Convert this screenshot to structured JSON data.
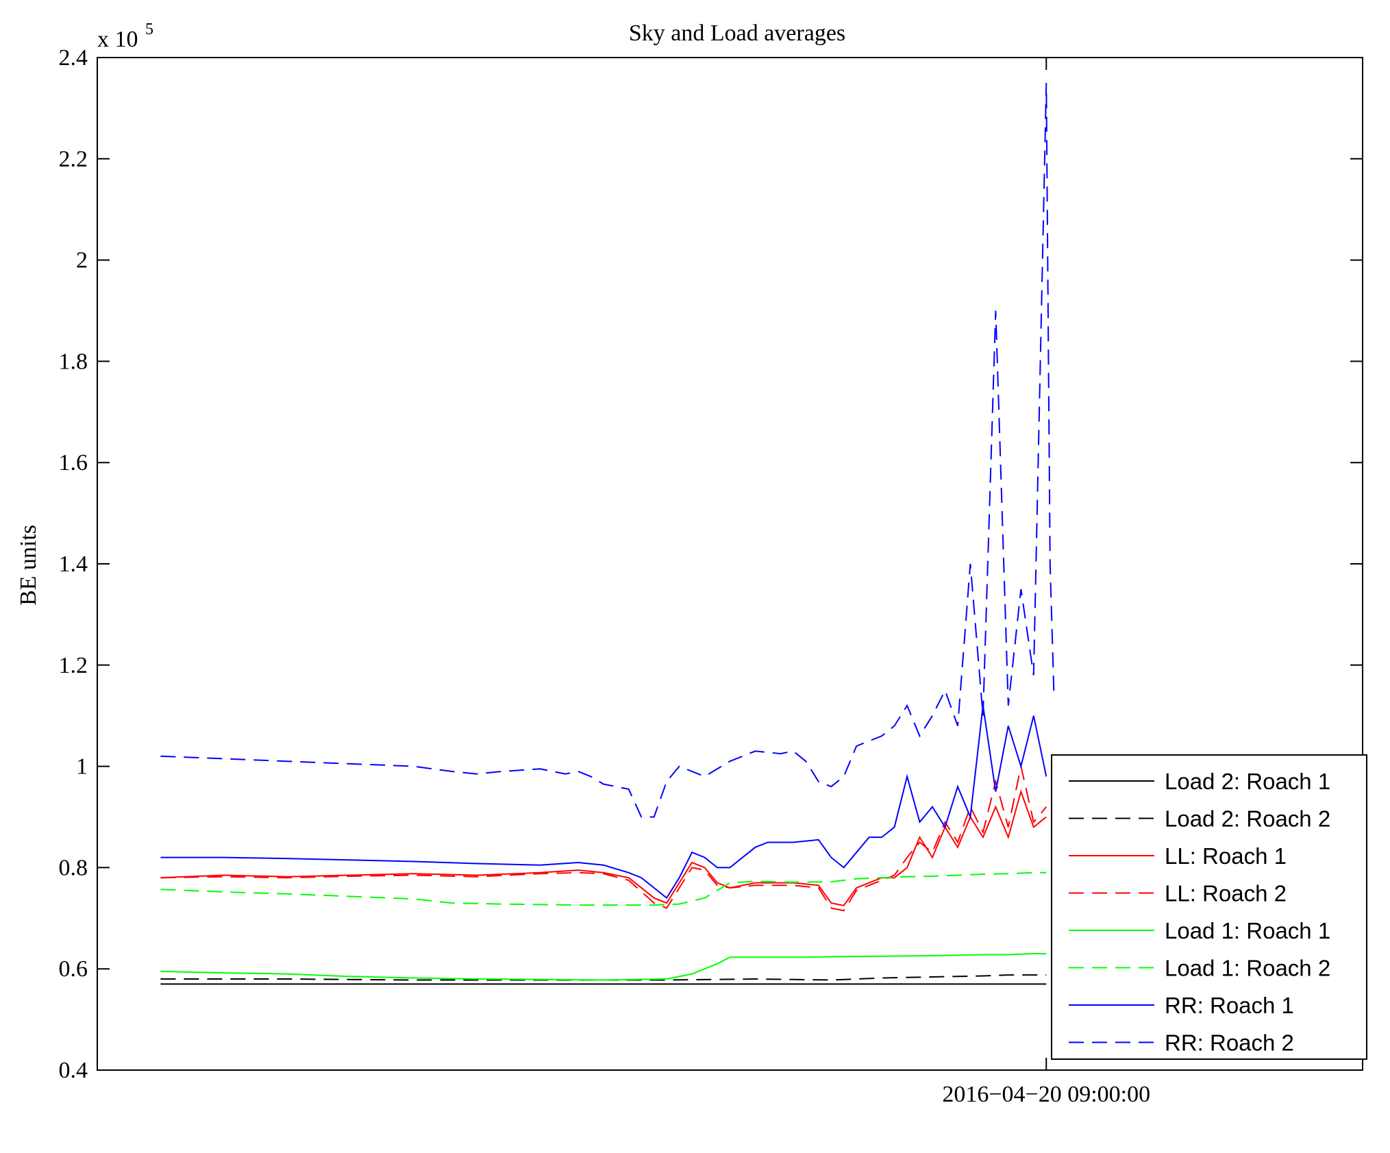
{
  "chart_data": {
    "type": "line",
    "title": "Sky and Load averages",
    "ylabel": "BE units",
    "xlabel": "",
    "y_exponent_label": "x 10",
    "y_exponent_power": "5",
    "ylim": [
      40000,
      240000
    ],
    "xlim": [
      0,
      100
    ],
    "yticks": [
      {
        "value": 40000,
        "label": "0.4"
      },
      {
        "value": 60000,
        "label": "0.6"
      },
      {
        "value": 80000,
        "label": "0.8"
      },
      {
        "value": 100000,
        "label": "1"
      },
      {
        "value": 120000,
        "label": "1.2"
      },
      {
        "value": 140000,
        "label": "1.4"
      },
      {
        "value": 160000,
        "label": "1.6"
      },
      {
        "value": 180000,
        "label": "1.8"
      },
      {
        "value": 200000,
        "label": "2"
      },
      {
        "value": 220000,
        "label": "2.2"
      },
      {
        "value": 240000,
        "label": "2.4"
      }
    ],
    "xticks": [
      {
        "value": 75,
        "label": "2016−04−20 09:00:00"
      }
    ],
    "grid": false,
    "legend_position": "bottom-right",
    "series": [
      {
        "name": "Load 2: Roach 1",
        "color": "#000000",
        "dash": "solid",
        "points": [
          [
            5,
            57000
          ],
          [
            20,
            57000
          ],
          [
            35,
            57000
          ],
          [
            50,
            57000
          ],
          [
            60,
            57000
          ],
          [
            70,
            57000
          ],
          [
            75,
            57000
          ]
        ]
      },
      {
        "name": "Load 2: Roach 2",
        "color": "#000000",
        "dash": "dashed",
        "points": [
          [
            5,
            58000
          ],
          [
            15,
            58000
          ],
          [
            25,
            57800
          ],
          [
            35,
            57800
          ],
          [
            45,
            57800
          ],
          [
            52,
            58000
          ],
          [
            58,
            57800
          ],
          [
            62,
            58200
          ],
          [
            66,
            58400
          ],
          [
            70,
            58600
          ],
          [
            72,
            58800
          ],
          [
            75,
            58800
          ]
        ]
      },
      {
        "name": "LL: Roach 1",
        "color": "#ff0000",
        "dash": "solid",
        "points": [
          [
            5,
            78000
          ],
          [
            10,
            78500
          ],
          [
            15,
            78200
          ],
          [
            20,
            78500
          ],
          [
            25,
            78800
          ],
          [
            30,
            78500
          ],
          [
            35,
            79000
          ],
          [
            38,
            79500
          ],
          [
            40,
            79000
          ],
          [
            42,
            78000
          ],
          [
            44,
            74000
          ],
          [
            45,
            73000
          ],
          [
            46,
            77000
          ],
          [
            47,
            81000
          ],
          [
            48,
            80000
          ],
          [
            49,
            77000
          ],
          [
            50,
            76000
          ],
          [
            52,
            77000
          ],
          [
            55,
            77000
          ],
          [
            57,
            76500
          ],
          [
            58,
            73000
          ],
          [
            59,
            72500
          ],
          [
            60,
            76000
          ],
          [
            62,
            78000
          ],
          [
            63,
            78000
          ],
          [
            64,
            80000
          ],
          [
            65,
            86000
          ],
          [
            66,
            82000
          ],
          [
            67,
            88000
          ],
          [
            68,
            84000
          ],
          [
            69,
            90000
          ],
          [
            70,
            86000
          ],
          [
            71,
            92000
          ],
          [
            72,
            86000
          ],
          [
            73,
            95000
          ],
          [
            74,
            88000
          ],
          [
            75,
            90000
          ]
        ]
      },
      {
        "name": "LL: Roach 2",
        "color": "#ff0000",
        "dash": "dashed",
        "points": [
          [
            5,
            78000
          ],
          [
            10,
            78200
          ],
          [
            15,
            78000
          ],
          [
            20,
            78300
          ],
          [
            25,
            78500
          ],
          [
            30,
            78200
          ],
          [
            35,
            78800
          ],
          [
            38,
            79000
          ],
          [
            40,
            78800
          ],
          [
            42,
            77500
          ],
          [
            44,
            73000
          ],
          [
            45,
            72000
          ],
          [
            46,
            76000
          ],
          [
            47,
            80000
          ],
          [
            48,
            79500
          ],
          [
            49,
            76500
          ],
          [
            50,
            76000
          ],
          [
            52,
            76500
          ],
          [
            55,
            76500
          ],
          [
            57,
            76000
          ],
          [
            58,
            72000
          ],
          [
            59,
            71500
          ],
          [
            60,
            75500
          ],
          [
            62,
            77500
          ],
          [
            63,
            78500
          ],
          [
            64,
            82000
          ],
          [
            65,
            85000
          ],
          [
            66,
            83000
          ],
          [
            67,
            89000
          ],
          [
            68,
            85000
          ],
          [
            69,
            92000
          ],
          [
            70,
            87000
          ],
          [
            71,
            97000
          ],
          [
            72,
            88000
          ],
          [
            73,
            100000
          ],
          [
            74,
            89000
          ],
          [
            75,
            92000
          ]
        ]
      },
      {
        "name": "Load 1: Roach 1",
        "color": "#00ff00",
        "dash": "solid",
        "points": [
          [
            5,
            59500
          ],
          [
            10,
            59200
          ],
          [
            15,
            59000
          ],
          [
            20,
            58500
          ],
          [
            25,
            58200
          ],
          [
            30,
            58000
          ],
          [
            35,
            57900
          ],
          [
            40,
            57800
          ],
          [
            45,
            58000
          ],
          [
            47,
            59000
          ],
          [
            49,
            61000
          ],
          [
            50,
            62300
          ],
          [
            53,
            62300
          ],
          [
            56,
            62300
          ],
          [
            58,
            62400
          ],
          [
            62,
            62500
          ],
          [
            66,
            62600
          ],
          [
            70,
            62800
          ],
          [
            72,
            62800
          ],
          [
            74,
            63000
          ],
          [
            75,
            63000
          ]
        ]
      },
      {
        "name": "Load 1: Roach 2",
        "color": "#00ff00",
        "dash": "dashed",
        "points": [
          [
            5,
            75700
          ],
          [
            10,
            75200
          ],
          [
            15,
            74800
          ],
          [
            20,
            74300
          ],
          [
            25,
            73800
          ],
          [
            28,
            73000
          ],
          [
            32,
            72800
          ],
          [
            38,
            72600
          ],
          [
            42,
            72600
          ],
          [
            44,
            72600
          ],
          [
            46,
            72800
          ],
          [
            48,
            74000
          ],
          [
            50,
            77000
          ],
          [
            52,
            77300
          ],
          [
            55,
            77100
          ],
          [
            58,
            77200
          ],
          [
            60,
            77800
          ],
          [
            62,
            78000
          ],
          [
            64,
            78200
          ],
          [
            66,
            78300
          ],
          [
            68,
            78500
          ],
          [
            70,
            78700
          ],
          [
            72,
            78800
          ],
          [
            74,
            79000
          ],
          [
            75,
            79000
          ]
        ]
      },
      {
        "name": "RR: Roach 1",
        "color": "#0000ff",
        "dash": "solid",
        "points": [
          [
            5,
            82000
          ],
          [
            10,
            82000
          ],
          [
            15,
            81800
          ],
          [
            20,
            81500
          ],
          [
            25,
            81200
          ],
          [
            30,
            80800
          ],
          [
            35,
            80500
          ],
          [
            38,
            81000
          ],
          [
            40,
            80500
          ],
          [
            42,
            79000
          ],
          [
            43,
            78000
          ],
          [
            44,
            76000
          ],
          [
            45,
            74000
          ],
          [
            46,
            78000
          ],
          [
            47,
            83000
          ],
          [
            48,
            82000
          ],
          [
            49,
            80000
          ],
          [
            50,
            80000
          ],
          [
            52,
            84000
          ],
          [
            53,
            85000
          ],
          [
            55,
            85000
          ],
          [
            57,
            85500
          ],
          [
            58,
            82000
          ],
          [
            59,
            80000
          ],
          [
            60,
            83000
          ],
          [
            61,
            86000
          ],
          [
            62,
            86000
          ],
          [
            63,
            88000
          ],
          [
            64,
            98000
          ],
          [
            65,
            89000
          ],
          [
            66,
            92000
          ],
          [
            67,
            88000
          ],
          [
            68,
            96000
          ],
          [
            69,
            90000
          ],
          [
            70,
            112000
          ],
          [
            71,
            95000
          ],
          [
            72,
            108000
          ],
          [
            73,
            100000
          ],
          [
            74,
            110000
          ],
          [
            75,
            98000
          ]
        ]
      },
      {
        "name": "RR: Roach 2",
        "color": "#0000ff",
        "dash": "dashed",
        "points": [
          [
            5,
            102000
          ],
          [
            10,
            101500
          ],
          [
            15,
            101000
          ],
          [
            20,
            100500
          ],
          [
            25,
            100000
          ],
          [
            28,
            99000
          ],
          [
            30,
            98500
          ],
          [
            32,
            99000
          ],
          [
            35,
            99500
          ],
          [
            37,
            98500
          ],
          [
            38,
            99000
          ],
          [
            39,
            98000
          ],
          [
            40,
            96500
          ],
          [
            42,
            95500
          ],
          [
            43,
            90000
          ],
          [
            44,
            90000
          ],
          [
            45,
            97000
          ],
          [
            46,
            100000
          ],
          [
            48,
            98000
          ],
          [
            50,
            101000
          ],
          [
            52,
            103000
          ],
          [
            54,
            102500
          ],
          [
            55,
            103000
          ],
          [
            56,
            101000
          ],
          [
            57,
            97000
          ],
          [
            58,
            96000
          ],
          [
            59,
            98000
          ],
          [
            60,
            104000
          ],
          [
            62,
            106000
          ],
          [
            63,
            108000
          ],
          [
            64,
            112000
          ],
          [
            65,
            106000
          ],
          [
            66,
            110000
          ],
          [
            67,
            115000
          ],
          [
            68,
            108000
          ],
          [
            69,
            140000
          ],
          [
            70,
            110000
          ],
          [
            71,
            190000
          ],
          [
            72,
            112000
          ],
          [
            73,
            135000
          ],
          [
            74,
            118000
          ],
          [
            75,
            235000
          ],
          [
            75.3,
            140000
          ],
          [
            75.6,
            115000
          ],
          [
            76,
            114000
          ]
        ]
      }
    ]
  }
}
